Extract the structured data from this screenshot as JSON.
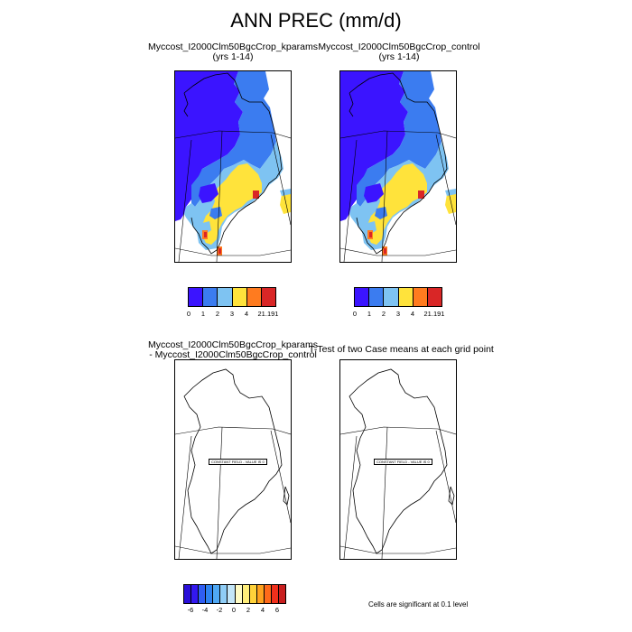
{
  "figure": {
    "title": "ANN PREC (mm/d)"
  },
  "panels": {
    "top_left": {
      "title": "Myccost_I2000Clm50BgcCrop_kparams",
      "subtitle": "(yrs 1-14)"
    },
    "top_right": {
      "title": "Myccost_I2000Clm50BgcCrop_control",
      "subtitle": "(yrs 1-14)"
    },
    "bottom_left": {
      "title_line1": "Myccost_I2000Clm50BgcCrop_kparams",
      "title_line2": " - Myccost_I2000Clm50BgcCrop_control",
      "field_note": "CONSTANT FIELD - VALUE IS 0"
    },
    "bottom_right": {
      "title": "T-Test of two Case means at each grid point",
      "field_note": "CONSTANT FIELD - VALUE IS 0",
      "footnote": "Cells are significant at 0.1 level"
    }
  },
  "colorbars": {
    "precip": {
      "colors": [
        "#3b14ff",
        "#3b7cf0",
        "#7ec3f2",
        "#ffe33b",
        "#ff7b1f",
        "#d92626"
      ],
      "labels": [
        "0",
        "1",
        "2",
        "3",
        "4",
        "21.191"
      ]
    },
    "diff": {
      "colors": [
        "#2a0fd9",
        "#3318f0",
        "#2f5df2",
        "#2e82f0",
        "#4fa8f4",
        "#8fcdf6",
        "#c4e6f8",
        "#fffbc4",
        "#ffee7a",
        "#ffd23a",
        "#ffa21f",
        "#ff6a1a",
        "#f0301c",
        "#c81e1e"
      ],
      "labels": [
        "-6",
        "-4",
        "-2",
        "0",
        "2",
        "4",
        "6"
      ]
    }
  }
}
